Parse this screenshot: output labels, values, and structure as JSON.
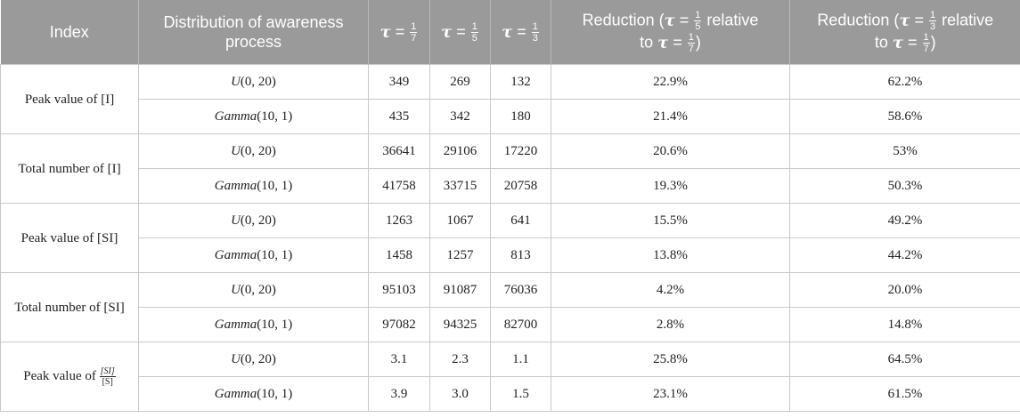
{
  "header": {
    "index": "Index",
    "distribution": "Distribution of awareness process",
    "tau_symbol": "τ",
    "eq": " = ",
    "one": "1",
    "d7": "7",
    "d5": "5",
    "d3": "3",
    "reduction_prefix": "Reduction (",
    "relative": " relative",
    "to": "to ",
    "close_paren": ")"
  },
  "dist_labels": {
    "u_name": "U",
    "u_args": "(0, 20)",
    "g_name": "Gamma",
    "g_args": "(10, 1)"
  },
  "rows": [
    {
      "index": "Peak value of [I]",
      "u": {
        "t7": "349",
        "t5": "269",
        "t3": "132",
        "r5": "22.9%",
        "r3": "62.2%"
      },
      "g": {
        "t7": "435",
        "t5": "342",
        "t3": "180",
        "r5": "21.4%",
        "r3": "58.6%"
      }
    },
    {
      "index": "Total number of [I]",
      "u": {
        "t7": "36641",
        "t5": "29106",
        "t3": "17220",
        "r5": "20.6%",
        "r3": "53%"
      },
      "g": {
        "t7": "41758",
        "t5": "33715",
        "t3": "20758",
        "r5": "19.3%",
        "r3": "50.3%"
      }
    },
    {
      "index": "Peak value of [SI]",
      "u": {
        "t7": "1263",
        "t5": "1067",
        "t3": "641",
        "r5": "15.5%",
        "r3": "49.2%"
      },
      "g": {
        "t7": "1458",
        "t5": "1257",
        "t3": "813",
        "r5": "13.8%",
        "r3": "44.2%"
      }
    },
    {
      "index": "Total number of [SI]",
      "u": {
        "t7": "95103",
        "t5": "91087",
        "t3": "76036",
        "r5": "4.2%",
        "r3": "20.0%"
      },
      "g": {
        "t7": "97082",
        "t5": "94325",
        "t3": "82700",
        "r5": "2.8%",
        "r3": "14.8%"
      }
    },
    {
      "index": "Peak value of ",
      "index_frac_num": "[SI]",
      "index_frac_den": "[S]",
      "u": {
        "t7": "3.1",
        "t5": "2.3",
        "t3": "1.1",
        "r5": "25.8%",
        "r3": "64.5%"
      },
      "g": {
        "t7": "3.9",
        "t5": "3.0",
        "t3": "1.5",
        "r5": "23.1%",
        "r3": "61.5%"
      }
    }
  ]
}
